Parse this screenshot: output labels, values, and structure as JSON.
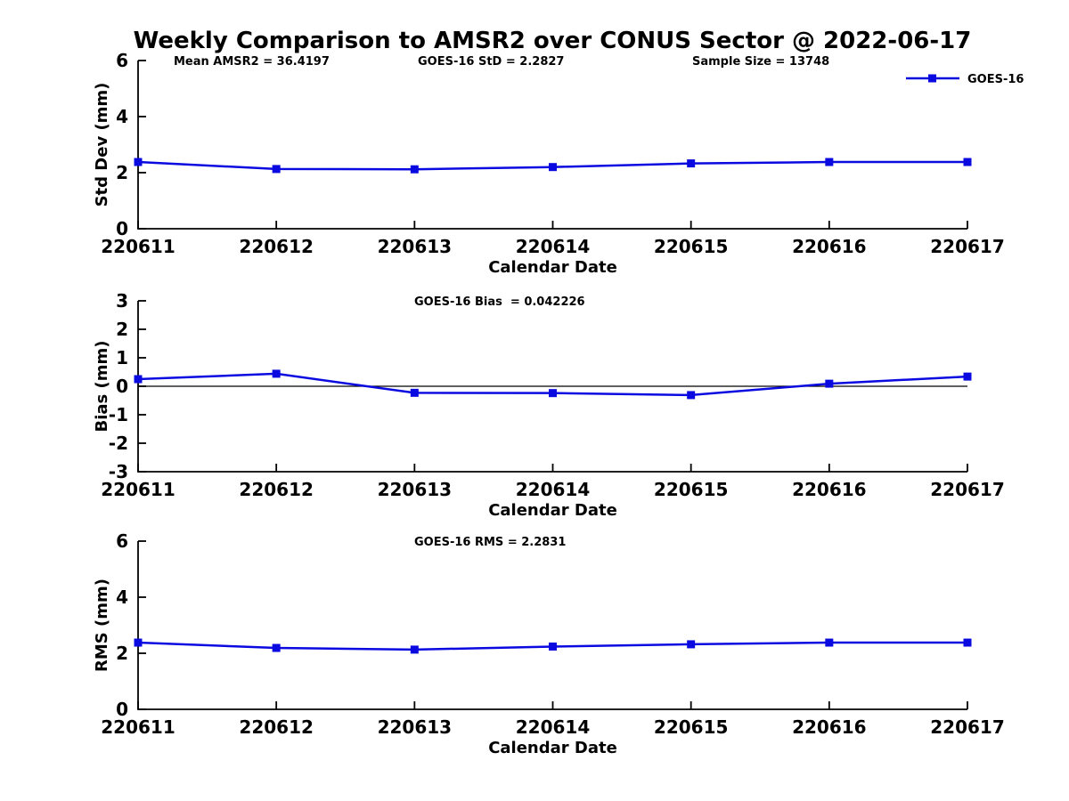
{
  "title": "Weekly Comparison to AMSR2 over CONUS Sector @ 2022-06-17",
  "colors": {
    "line": "#0a0ae0",
    "axis": "#000000",
    "background": "#ffffff"
  },
  "chart_data": [
    {
      "type": "line",
      "name": "std-dev",
      "ylabel": "Std Dev (mm)",
      "xlabel": "Calendar Date",
      "ylim": [
        0,
        6
      ],
      "yticks": [
        0,
        2,
        4,
        6
      ],
      "categories": [
        "220611",
        "220612",
        "220613",
        "220614",
        "220615",
        "220616",
        "220617"
      ],
      "series": [
        {
          "name": "GOES-16",
          "values": [
            2.38,
            2.13,
            2.12,
            2.2,
            2.33,
            2.38,
            2.38
          ]
        }
      ],
      "annotations": [
        "Mean AMSR2 = 36.4197",
        "GOES-16 StD = 2.2827",
        "Sample Size = 13748"
      ],
      "legend": {
        "entries": [
          "GOES-16"
        ],
        "position": "top-right"
      },
      "grid": false,
      "zero_line": false
    },
    {
      "type": "line",
      "name": "bias",
      "ylabel": "Bias (mm)",
      "xlabel": "Calendar Date",
      "ylim": [
        -3,
        3
      ],
      "yticks": [
        -3,
        -2,
        -1,
        0,
        1,
        2,
        3
      ],
      "categories": [
        "220611",
        "220612",
        "220613",
        "220614",
        "220615",
        "220616",
        "220617"
      ],
      "series": [
        {
          "name": "GOES-16",
          "values": [
            0.25,
            0.44,
            -0.23,
            -0.24,
            -0.31,
            0.09,
            0.34
          ]
        }
      ],
      "annotations": [
        "GOES-16 Bias  = 0.042226"
      ],
      "grid": false,
      "zero_line": true
    },
    {
      "type": "line",
      "name": "rms",
      "ylabel": "RMS (mm)",
      "xlabel": "Calendar Date",
      "ylim": [
        0,
        6
      ],
      "yticks": [
        0,
        2,
        4,
        6
      ],
      "categories": [
        "220611",
        "220612",
        "220613",
        "220614",
        "220615",
        "220616",
        "220617"
      ],
      "series": [
        {
          "name": "GOES-16",
          "values": [
            2.38,
            2.19,
            2.13,
            2.24,
            2.32,
            2.38,
            2.38
          ]
        }
      ],
      "annotations": [
        "GOES-16 RMS = 2.2831"
      ],
      "grid": false,
      "zero_line": false
    }
  ]
}
